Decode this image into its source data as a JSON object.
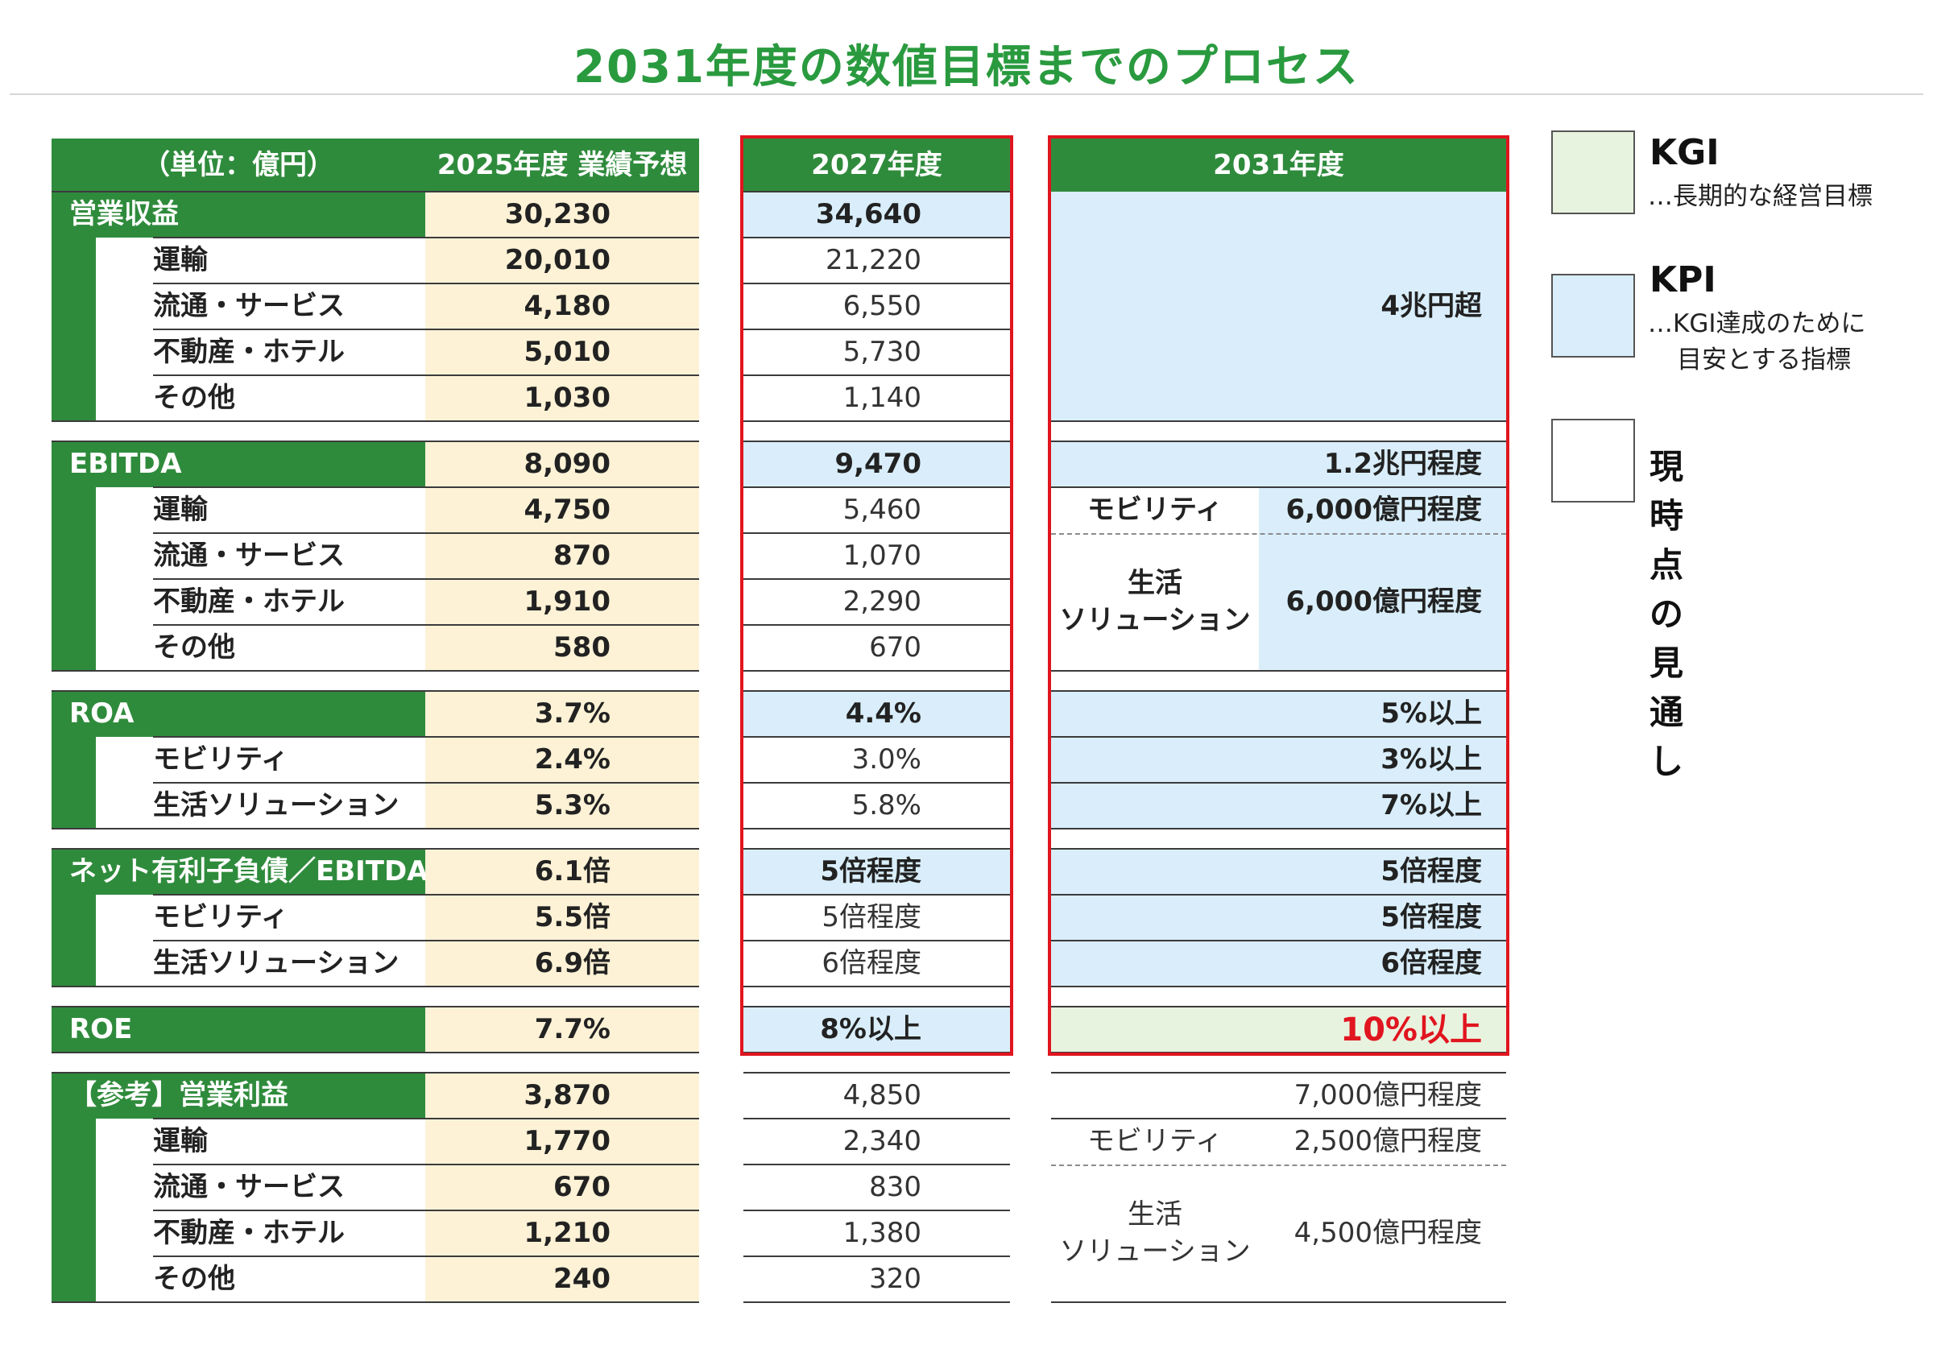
{
  "title": "2031年度の数値目標までのプロセス",
  "header": {
    "unit": "（単位：億円）",
    "fy2025": "2025年度 業績予想",
    "fy2027": "2027年度",
    "fy2031": "2031年度"
  },
  "sections": [
    {
      "label": "営業収益",
      "v25": "30,230",
      "v27": "34,640",
      "subs": [
        {
          "label": "運輸",
          "v25": "20,010",
          "v27": "21,220"
        },
        {
          "label": "流通・サービス",
          "v25": "4,180",
          "v27": "6,550"
        },
        {
          "label": "不動産・ホテル",
          "v25": "5,010",
          "v27": "5,730"
        },
        {
          "label": "その他",
          "v25": "1,030",
          "v27": "1,140"
        }
      ],
      "v31_main": "4兆円超"
    },
    {
      "label": "EBITDA",
      "v25": "8,090",
      "v27": "9,470",
      "subs": [
        {
          "label": "運輸",
          "v25": "4,750",
          "v27": "5,460"
        },
        {
          "label": "流通・サービス",
          "v25": "870",
          "v27": "1,070"
        },
        {
          "label": "不動産・ホテル",
          "v25": "1,910",
          "v27": "2,290"
        },
        {
          "label": "その他",
          "v25": "580",
          "v27": "670"
        }
      ],
      "v31_main": "1.2兆円程度",
      "v31_seg1_label": "モビリティ",
      "v31_seg1_value": "6,000億円程度",
      "v31_seg2_label_1": "生活",
      "v31_seg2_label_2": "ソリューション",
      "v31_seg2_value": "6,000億円程度"
    },
    {
      "label": "ROA",
      "v25": "3.7%",
      "v27": "4.4%",
      "v31": "5%以上",
      "subs": [
        {
          "label": "モビリティ",
          "v25": "2.4%",
          "v27": "3.0%",
          "v31": "3%以上"
        },
        {
          "label": "生活ソリューション",
          "v25": "5.3%",
          "v27": "5.8%",
          "v31": "7%以上"
        }
      ]
    },
    {
      "label": "ネット有利子負債／EBITDA",
      "v25": "6.1倍",
      "v27": "5倍程度",
      "v31": "5倍程度",
      "subs": [
        {
          "label": "モビリティ",
          "v25": "5.5倍",
          "v27": "5倍程度",
          "v31": "5倍程度"
        },
        {
          "label": "生活ソリューション",
          "v25": "6.9倍",
          "v27": "6倍程度",
          "v31": "6倍程度"
        }
      ]
    },
    {
      "label": "ROE",
      "v25": "7.7%",
      "v27": "8%以上",
      "v31": "10%以上"
    },
    {
      "label": "【参考】営業利益",
      "v25": "3,870",
      "v27": "4,850",
      "subs": [
        {
          "label": "運輸",
          "v25": "1,770",
          "v27": "2,340"
        },
        {
          "label": "流通・サービス",
          "v25": "670",
          "v27": "830"
        },
        {
          "label": "不動産・ホテル",
          "v25": "1,210",
          "v27": "1,380"
        },
        {
          "label": "その他",
          "v25": "240",
          "v27": "320"
        }
      ],
      "v31_main": "7,000億円程度",
      "v31_seg1_label": "モビリティ",
      "v31_seg1_value": "2,500億円程度",
      "v31_seg2_label_1": "生活",
      "v31_seg2_label_2": "ソリューション",
      "v31_seg2_value": "4,500億円程度"
    }
  ],
  "legend": {
    "kgi_title": "KGI",
    "kgi_desc": "…長期的な経営目標",
    "kpi_title": "KPI",
    "kpi_desc_1": "…KGI達成のために",
    "kpi_desc_2": "目安とする指標",
    "current_title": "現時点の見通し"
  },
  "colors": {
    "green_header": "#2f8b3c",
    "title_green": "#2a9a3f",
    "cream": "#fdf2d6",
    "kpi_blue": "#d9eefa",
    "kgi_green": "#e8f3df",
    "target_red": "#e0151f"
  }
}
